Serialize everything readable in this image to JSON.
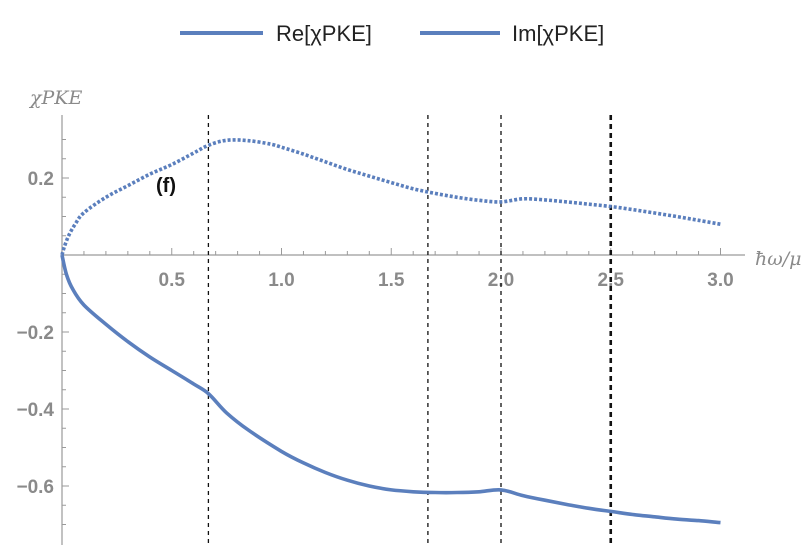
{
  "chart_data": {
    "type": "line",
    "title": "",
    "xlabel": "ħω/μ",
    "ylabel": "χPKE",
    "xlim": [
      0.0,
      3.05
    ],
    "ylim": [
      -0.72,
      0.36
    ],
    "x_ticks": [
      {
        "value": 0.5,
        "label": "0.5"
      },
      {
        "value": 1.0,
        "label": "1.0"
      },
      {
        "value": 1.5,
        "label": "1.5"
      },
      {
        "value": 2.0,
        "label": "2.0"
      },
      {
        "value": 2.5,
        "label": "2.5"
      },
      {
        "value": 3.0,
        "label": "3.0"
      }
    ],
    "y_ticks": [
      {
        "value": 0.2,
        "label": "0.2"
      },
      {
        "value": -0.2,
        "label": "−0.2"
      },
      {
        "value": -0.4,
        "label": "−0.4"
      },
      {
        "value": -0.6,
        "label": "−0.6"
      }
    ],
    "grid": false,
    "legend_position": "top-center",
    "annotation": "(f)",
    "vertical_lines": [
      0.667,
      1.667,
      2.0,
      2.5
    ],
    "series": [
      {
        "name": "Re[χPKE]",
        "style": "solid",
        "color": "#5b7fbd",
        "x": [
          0.0,
          0.02,
          0.05,
          0.1,
          0.2,
          0.3,
          0.4,
          0.5,
          0.6,
          0.667,
          0.75,
          0.85,
          1.0,
          1.1,
          1.2,
          1.3,
          1.4,
          1.5,
          1.6,
          1.7,
          1.8,
          1.9,
          2.0,
          2.1,
          2.2,
          2.3,
          2.4,
          2.5,
          2.6,
          2.7,
          2.8,
          2.9,
          3.0
        ],
        "y": [
          0.0,
          -0.05,
          -0.09,
          -0.13,
          -0.18,
          -0.225,
          -0.265,
          -0.3,
          -0.335,
          -0.36,
          -0.41,
          -0.455,
          -0.51,
          -0.54,
          -0.565,
          -0.585,
          -0.6,
          -0.61,
          -0.615,
          -0.617,
          -0.617,
          -0.615,
          -0.61,
          -0.625,
          -0.637,
          -0.648,
          -0.658,
          -0.666,
          -0.674,
          -0.68,
          -0.686,
          -0.69,
          -0.695
        ]
      },
      {
        "name": "Im[χPKE]",
        "style": "dotted",
        "color": "#5b7fbd",
        "x": [
          0.0,
          0.01,
          0.03,
          0.06,
          0.1,
          0.2,
          0.3,
          0.4,
          0.5,
          0.6,
          0.667,
          0.75,
          0.85,
          0.95,
          1.0,
          1.1,
          1.2,
          1.3,
          1.4,
          1.5,
          1.6,
          1.7,
          1.8,
          1.9,
          2.0,
          2.1,
          2.2,
          2.3,
          2.4,
          2.5,
          2.6,
          2.7,
          2.8,
          2.9,
          3.0
        ],
        "y": [
          0.0,
          0.02,
          0.05,
          0.08,
          0.11,
          0.15,
          0.18,
          0.21,
          0.235,
          0.265,
          0.285,
          0.298,
          0.297,
          0.288,
          0.28,
          0.262,
          0.242,
          0.222,
          0.205,
          0.188,
          0.172,
          0.16,
          0.15,
          0.142,
          0.138,
          0.146,
          0.143,
          0.138,
          0.132,
          0.126,
          0.118,
          0.109,
          0.1,
          0.09,
          0.08
        ]
      }
    ]
  }
}
